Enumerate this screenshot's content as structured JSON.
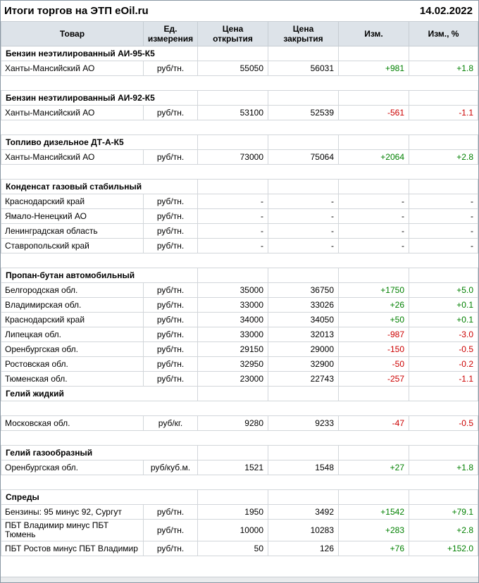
{
  "page": {
    "title": "Итоги торгов на ЭТП eOil.ru",
    "date": "14.02.2022"
  },
  "colors": {
    "positive": "#008000",
    "negative": "#cc0000",
    "header_bg": "#dde3e9"
  },
  "table": {
    "columns": [
      "Товар",
      "Ед. измерения",
      "Цена открытия",
      "Цена закрытия",
      "Изм.",
      "Изм., %"
    ],
    "rows": [
      {
        "type": "section",
        "title": "Бензин неэтилированный АИ-95-К5"
      },
      {
        "type": "data",
        "product": "Ханты-Мансийский АО",
        "unit": "руб/тн.",
        "open": "55050",
        "close": "56031",
        "change": "+981",
        "change_pct": "+1.8"
      },
      {
        "type": "spacer"
      },
      {
        "type": "section",
        "title": "Бензин неэтилированный АИ-92-К5"
      },
      {
        "type": "data",
        "product": "Ханты-Мансийский АО",
        "unit": "руб/тн.",
        "open": "53100",
        "close": "52539",
        "change": "-561",
        "change_pct": "-1.1"
      },
      {
        "type": "spacer"
      },
      {
        "type": "section",
        "title": "Топливо дизельное ДТ-А-К5"
      },
      {
        "type": "data",
        "product": "Ханты-Мансийский АО",
        "unit": "руб/тн.",
        "open": "73000",
        "close": "75064",
        "change": "+2064",
        "change_pct": "+2.8"
      },
      {
        "type": "spacer"
      },
      {
        "type": "section",
        "title": "Конденсат газовый стабильный"
      },
      {
        "type": "data",
        "product": "Краснодарский край",
        "unit": "руб/тн.",
        "open": "-",
        "close": "-",
        "change": "-",
        "change_pct": "-"
      },
      {
        "type": "data",
        "product": "Ямало-Ненецкий АО",
        "unit": "руб/тн.",
        "open": "-",
        "close": "-",
        "change": "-",
        "change_pct": "-"
      },
      {
        "type": "data",
        "product": "Ленинградская область",
        "unit": "руб/тн.",
        "open": "-",
        "close": "-",
        "change": "-",
        "change_pct": "-"
      },
      {
        "type": "data",
        "product": "Ставропольский край",
        "unit": "руб/тн.",
        "open": "-",
        "close": "-",
        "change": "-",
        "change_pct": "-"
      },
      {
        "type": "spacer"
      },
      {
        "type": "section",
        "title": "Пропан-бутан автомобильный"
      },
      {
        "type": "data",
        "product": "Белгородская обл.",
        "unit": "руб/тн.",
        "open": "35000",
        "close": "36750",
        "change": "+1750",
        "change_pct": "+5.0"
      },
      {
        "type": "data",
        "product": "Владимирская обл.",
        "unit": "руб/тн.",
        "open": "33000",
        "close": "33026",
        "change": "+26",
        "change_pct": "+0.1"
      },
      {
        "type": "data",
        "product": "Краснодарский край",
        "unit": "руб/тн.",
        "open": "34000",
        "close": "34050",
        "change": "+50",
        "change_pct": "+0.1"
      },
      {
        "type": "data",
        "product": "Липецкая обл.",
        "unit": "руб/тн.",
        "open": "33000",
        "close": "32013",
        "change": "-987",
        "change_pct": "-3.0"
      },
      {
        "type": "data",
        "product": "Оренбургская обл.",
        "unit": "руб/тн.",
        "open": "29150",
        "close": "29000",
        "change": "-150",
        "change_pct": "-0.5"
      },
      {
        "type": "data",
        "product": "Ростовская обл.",
        "unit": "руб/тн.",
        "open": "32950",
        "close": "32900",
        "change": "-50",
        "change_pct": "-0.2"
      },
      {
        "type": "data",
        "product": "Тюменская обл.",
        "unit": "руб/тн.",
        "open": "23000",
        "close": "22743",
        "change": "-257",
        "change_pct": "-1.1"
      },
      {
        "type": "section",
        "title": "Гелий жидкий"
      },
      {
        "type": "spacer"
      },
      {
        "type": "data",
        "product": "Московская обл.",
        "unit": "руб/кг.",
        "open": "9280",
        "close": "9233",
        "change": "-47",
        "change_pct": "-0.5"
      },
      {
        "type": "spacer"
      },
      {
        "type": "section",
        "title": "Гелий газообразный"
      },
      {
        "type": "data",
        "product": "Оренбургская обл.",
        "unit": "руб/куб.м.",
        "open": "1521",
        "close": "1548",
        "change": "+27",
        "change_pct": "+1.8"
      },
      {
        "type": "spacer"
      },
      {
        "type": "section",
        "title": "Спреды"
      },
      {
        "type": "data",
        "product": "Бензины: 95 минус 92, Сургут",
        "unit": "руб/тн.",
        "open": "1950",
        "close": "3492",
        "change": "+1542",
        "change_pct": "+79.1"
      },
      {
        "type": "data",
        "product": "ПБТ Владимир минус ПБТ Тюмень",
        "unit": "руб/тн.",
        "open": "10000",
        "close": "10283",
        "change": "+283",
        "change_pct": "+2.8"
      },
      {
        "type": "data",
        "product": "ПБТ Ростов минус ПБТ Владимир",
        "unit": "руб/тн.",
        "open": "50",
        "close": "126",
        "change": "+76",
        "change_pct": "+152.0"
      }
    ]
  }
}
